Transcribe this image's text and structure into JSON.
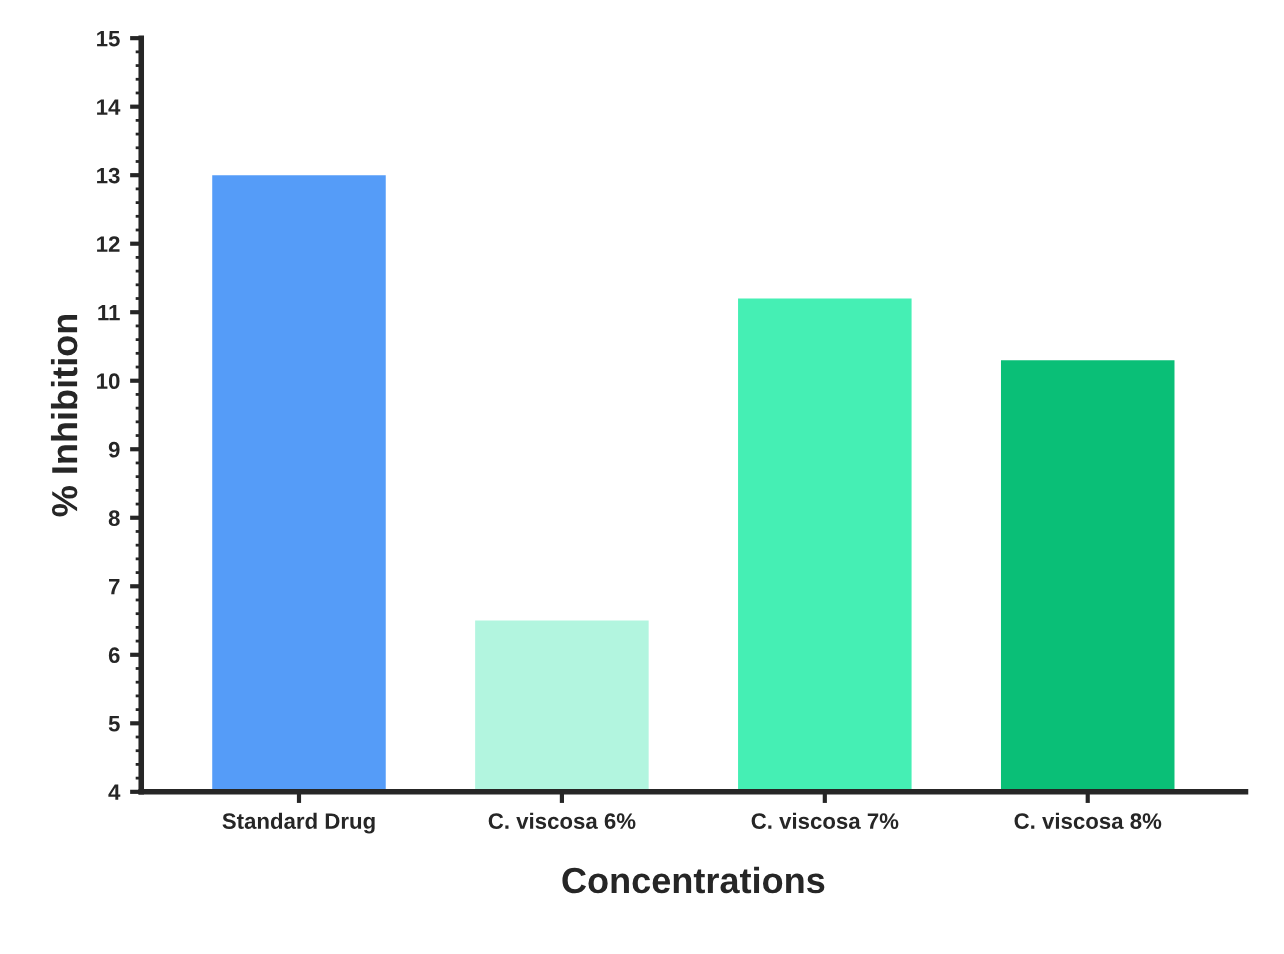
{
  "chart_data": {
    "type": "bar",
    "xlabel": "Concentrations",
    "ylabel": "% Inhibition",
    "categories": [
      "Standard Drug",
      "C. viscosa 6%",
      "C. viscosa 7%",
      "C. viscosa 8%"
    ],
    "values": [
      13.0,
      6.5,
      11.2,
      10.3
    ],
    "colors": [
      "#559cf8",
      "#b2f5df",
      "#45efb4",
      "#0abf77"
    ],
    "ylim": [
      4,
      15
    ],
    "yticks": [
      4,
      5,
      6,
      7,
      8,
      9,
      10,
      11,
      12,
      13,
      14,
      15
    ],
    "grid": false
  }
}
